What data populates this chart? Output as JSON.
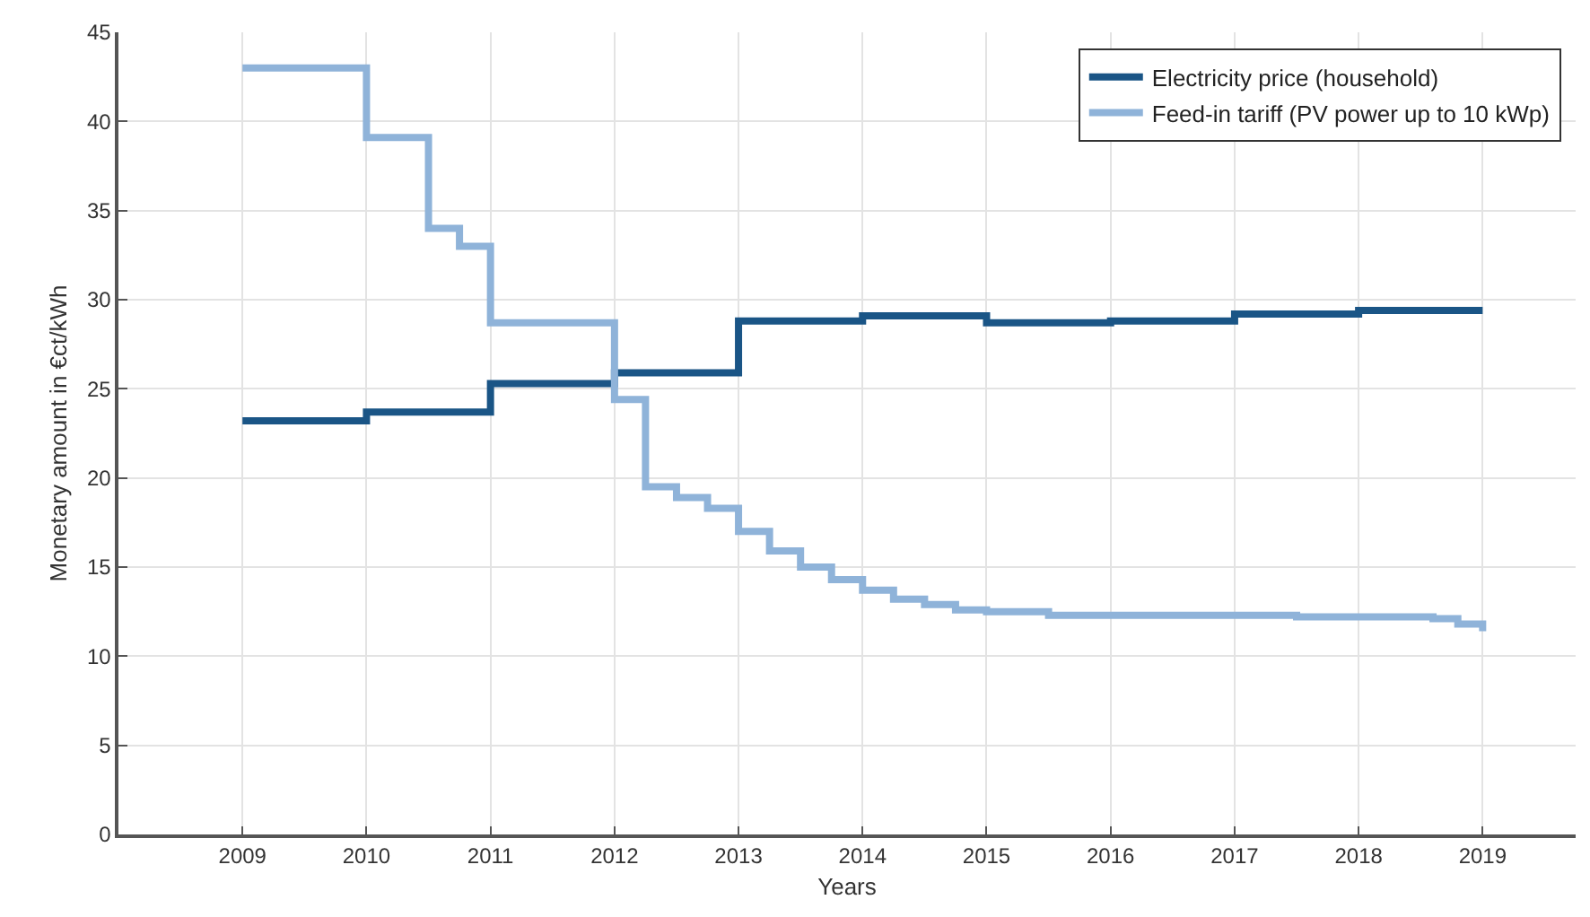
{
  "chart_data": {
    "type": "step",
    "xlabel": "Years",
    "ylabel": "Monetary amount in €ct/kWh",
    "xlim": [
      2008,
      2019.75
    ],
    "xticks": [
      2009,
      2010,
      2011,
      2012,
      2013,
      2014,
      2015,
      2016,
      2017,
      2018,
      2019
    ],
    "ylim": [
      0,
      45
    ],
    "yticks": [
      0,
      5,
      10,
      15,
      20,
      25,
      30,
      35,
      40,
      45
    ],
    "grid": true,
    "legend": "top right",
    "line_style": "solid",
    "marker": "none",
    "series": [
      {
        "name": "Electricity price (household)",
        "color": "#1a5586",
        "x": [
          2009,
          2010,
          2011,
          2012,
          2013,
          2014,
          2015,
          2016,
          2017,
          2018,
          2019
        ],
        "values": [
          23.2,
          23.7,
          25.3,
          25.9,
          28.8,
          29.1,
          28.7,
          28.8,
          29.2,
          29.4,
          29.4
        ]
      },
      {
        "name": "Feed-in tariff (PV power up to 10 kWp)",
        "color": "#8fb3d9",
        "x": [
          2009,
          2010,
          2010.5,
          2010.75,
          2011,
          2012,
          2012.25,
          2012.5,
          2012.75,
          2013,
          2013.25,
          2013.5,
          2013.75,
          2014,
          2014.25,
          2014.5,
          2014.75,
          2015,
          2015.5,
          2016,
          2017,
          2017.5,
          2018,
          2018.6,
          2018.8,
          2019
        ],
        "values": [
          43.0,
          39.1,
          34.0,
          33.0,
          28.7,
          24.4,
          19.5,
          18.9,
          18.3,
          17.0,
          15.9,
          15.0,
          14.3,
          13.7,
          13.2,
          12.9,
          12.6,
          12.5,
          12.3,
          12.3,
          12.3,
          12.2,
          12.2,
          12.1,
          11.8,
          11.4
        ]
      }
    ]
  }
}
